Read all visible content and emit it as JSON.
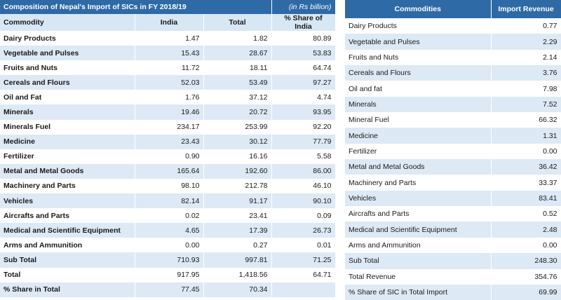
{
  "left_table": {
    "title": "Composition of Nepal's Import of SICs in FY 2018/19",
    "unit": "(in Rs billion)",
    "columns": [
      "Commodity",
      "India",
      "Total",
      "% Share of India"
    ],
    "rows": [
      [
        "Dairy Products",
        "1.47",
        "1.82",
        "80.89"
      ],
      [
        "Vegetable and Pulses",
        "15.43",
        "28.67",
        "53.83"
      ],
      [
        "Fruits and Nuts",
        "11.72",
        "18.11",
        "64.74"
      ],
      [
        "Cereals and Flours",
        "52.03",
        "53.49",
        "97.27"
      ],
      [
        "Oil and Fat",
        "1.76",
        "37.12",
        "4.74"
      ],
      [
        "Minerals",
        "19.46",
        "20.72",
        "93.95"
      ],
      [
        "Minerals Fuel",
        "234.17",
        "253.99",
        "92.20"
      ],
      [
        "Medicine",
        "23.43",
        "30.12",
        "77.79"
      ],
      [
        "Fertilizer",
        "0.90",
        "16.16",
        "5.58"
      ],
      [
        "Metal and Metal Goods",
        "165.64",
        "192.60",
        "86.00"
      ],
      [
        "Machinery and Parts",
        "98.10",
        "212.78",
        "46.10"
      ],
      [
        "Vehicles",
        "82.14",
        "91.17",
        "90.10"
      ],
      [
        "Aircrafts and Parts",
        "0.02",
        "23.41",
        "0.09"
      ],
      [
        "Medical and Scientific Equipment",
        "4.65",
        "17.39",
        "26.73"
      ],
      [
        "Arms and Ammunition",
        "0.00",
        "0.27",
        "0.01"
      ],
      [
        "Sub Total",
        "710.93",
        "997.81",
        "71.25"
      ],
      [
        "Total",
        "917.95",
        "1,418.56",
        "64.71"
      ],
      [
        "% Share in Total",
        "77.45",
        "70.34",
        ""
      ]
    ]
  },
  "right_table": {
    "columns": [
      "Commodities",
      "Import Revenue"
    ],
    "rows": [
      [
        "Dairy Products",
        "0.77"
      ],
      [
        "Vegetable and Pulses",
        "2.29"
      ],
      [
        "Fruits and Nuts",
        "2.14"
      ],
      [
        "Cereals and Flours",
        "3.76"
      ],
      [
        "Oil and fat",
        "7.98"
      ],
      [
        "Minerals",
        "7.52"
      ],
      [
        "Mineral Fuel",
        "66.32"
      ],
      [
        "Medicine",
        "1.31"
      ],
      [
        "Fertilizer",
        "0.00"
      ],
      [
        "Metal and Metal Goods",
        "36.42"
      ],
      [
        "Machinery and Parts",
        "33.37"
      ],
      [
        "Vehicles",
        "83.41"
      ],
      [
        "Aircrafts and Parts",
        "0.52"
      ],
      [
        "Medical and Scientific Equipment",
        "2.48"
      ],
      [
        "Arms and Ammunition",
        "0.00"
      ],
      [
        "Sub Total",
        "248.30"
      ],
      [
        "Total Revenue",
        "354.76"
      ],
      [
        "% Share of SIC in Total Import",
        "69.99"
      ]
    ]
  }
}
